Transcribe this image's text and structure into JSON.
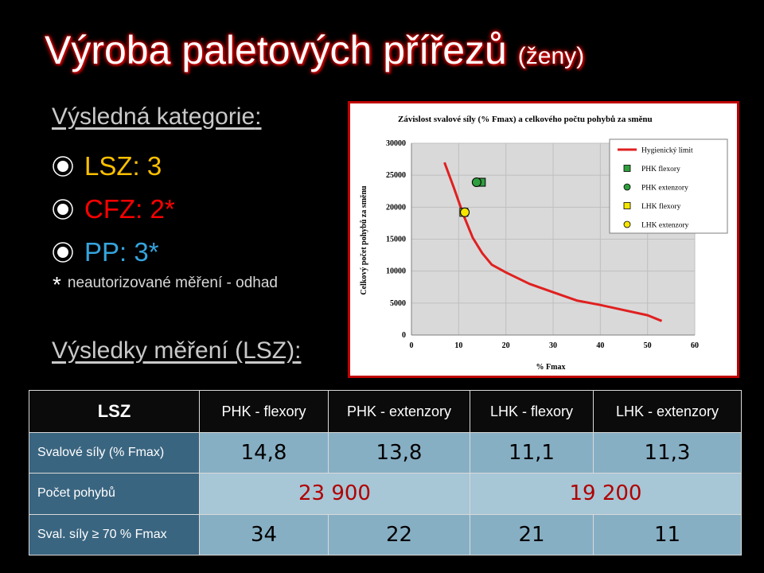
{
  "title": {
    "main": "Výroba paletových přířezů",
    "sub": "(ženy)"
  },
  "category": {
    "heading": "Výsledná kategorie",
    "colon": ":",
    "items": [
      {
        "label": "LSZ: 3",
        "color": "#ffc000"
      },
      {
        "label": "CFZ: 2*",
        "color": "#ff0000"
      },
      {
        "label": "PP: 3*",
        "color": "#35a4dd"
      }
    ],
    "note_star": "*",
    "note": "neautorizované měření - odhad"
  },
  "results": {
    "heading": "Výsledky měření (LSZ)",
    "colon": ":"
  },
  "chart_data": {
    "type": "scatter",
    "title": "Závislost svalové síly (% Fmax) a celkového počtu pohybů za směnu",
    "xlabel": "% Fmax",
    "ylabel": "Celkový počet pohybů za směnu",
    "xlim": [
      0,
      60
    ],
    "ylim": [
      0,
      30000
    ],
    "xticks": [
      0,
      10,
      20,
      30,
      40,
      50,
      60
    ],
    "yticks": [
      0,
      5000,
      10000,
      15000,
      20000,
      25000,
      30000
    ],
    "grid": true,
    "legend": "top-right",
    "series": [
      {
        "name": "Hygienický limit",
        "type": "line",
        "color": "#e02020",
        "x": [
          7,
          9,
          11,
          13,
          15,
          17,
          20,
          25,
          30,
          35,
          40,
          45,
          50,
          53
        ],
        "y": [
          27000,
          23000,
          18800,
          15200,
          12800,
          11000,
          9800,
          8000,
          6700,
          5400,
          4700,
          3900,
          3100,
          2200
        ]
      },
      {
        "name": "PHK flexory",
        "type": "square",
        "color": "#2e9e3e",
        "points": [
          [
            14.8,
            23900
          ]
        ]
      },
      {
        "name": "PHK extenzory",
        "type": "circle",
        "color": "#2e9e3e",
        "points": [
          [
            13.8,
            23900
          ]
        ]
      },
      {
        "name": "LHK flexory",
        "type": "square",
        "color": "#f5e600",
        "points": [
          [
            11.1,
            19200
          ]
        ]
      },
      {
        "name": "LHK extenzory",
        "type": "circle",
        "color": "#f5e600",
        "points": [
          [
            11.3,
            19200
          ]
        ]
      }
    ]
  },
  "table": {
    "header": [
      "LSZ",
      "PHK - flexory",
      "PHK - extenzory",
      "LHK - flexory",
      "LHK - extenzory"
    ],
    "row1": {
      "label": "Svalové síly (% Fmax)",
      "values": [
        "14,8",
        "13,8",
        "11,1",
        "11,3"
      ]
    },
    "row2": {
      "label": "Počet pohybů",
      "values": [
        "23 900",
        "19 200"
      ]
    },
    "row3": {
      "label": "Sval. síly ≥ 70 % Fmax",
      "values": [
        "34",
        "22",
        "21",
        "11"
      ]
    }
  }
}
